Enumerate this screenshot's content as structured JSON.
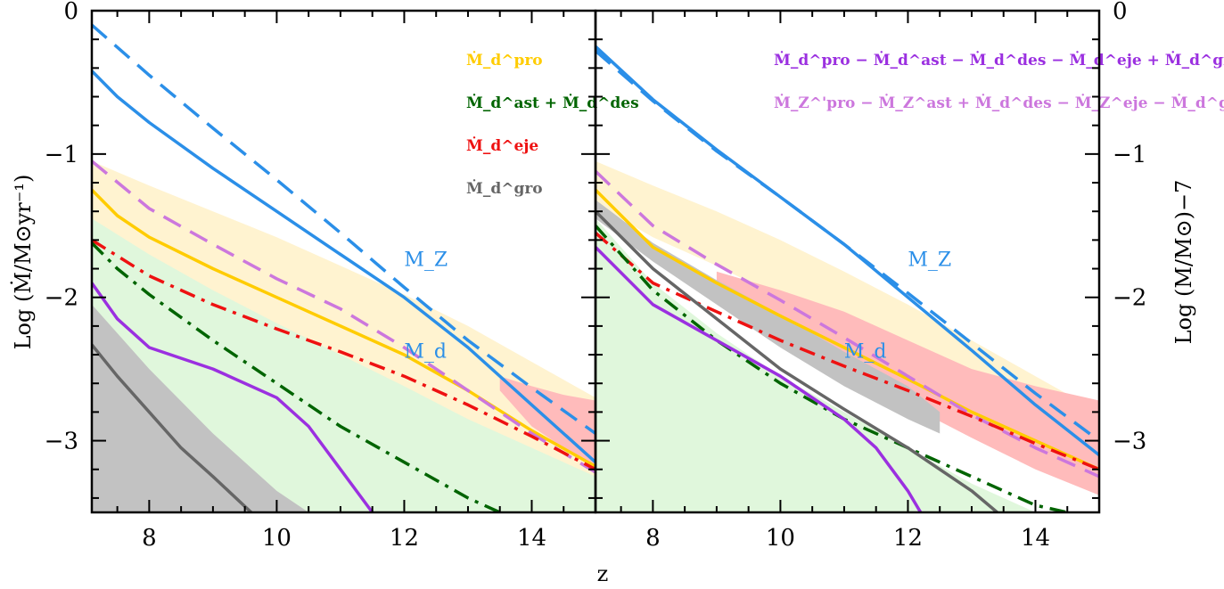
{
  "chart_data": {
    "type": "line",
    "xlabel": "z",
    "ylabel_left": "Log (Ṁ/M⊙yr⁻¹)",
    "ylabel_right": "Log (M/M⊙)−7",
    "xlim": [
      7.1,
      15.0
    ],
    "ylim": [
      -3.5,
      0
    ],
    "x_ticks": [
      "8",
      "10",
      "12",
      "14"
    ],
    "y_ticks": [
      "0",
      "−1",
      "−2",
      "−3"
    ],
    "colors": {
      "blue": "#2b8fe8",
      "gold": "#ffcc00",
      "violet": "#cc77dd",
      "red": "#ee1111",
      "green": "#006400",
      "purple": "#9b30e0",
      "gray": "#666666",
      "band_yellow": "#fff3d0",
      "band_green": "#e0f7dc",
      "band_red": "#ffbbbb",
      "band_gray": "#c2c2c2"
    },
    "left_panel": {
      "legend": [
        {
          "text": "Ṁ_d^pro",
          "color": "#ffcc00"
        },
        {
          "text": "Ṁ_d^ast + Ṁ_d^des",
          "color": "#006400"
        },
        {
          "text": "Ṁ_d^eje",
          "color": "#ee1111"
        },
        {
          "text": "Ṁ_d^gro",
          "color": "#666666"
        }
      ],
      "curve_labels": [
        {
          "text": "M_Z",
          "x": 12.0,
          "y": -1.78,
          "color": "#2b8fe8"
        },
        {
          "text": "M_d",
          "x": 12.0,
          "y": -2.42,
          "color": "#2b8fe8"
        }
      ],
      "bands": [
        {
          "name": "yellow-band",
          "color": "#fff3d0",
          "x": [
            7.1,
            8,
            9,
            10,
            11,
            12,
            13,
            14,
            15
          ],
          "upper": [
            -1.05,
            -1.22,
            -1.4,
            -1.58,
            -1.78,
            -1.98,
            -2.2,
            -2.45,
            -2.7
          ],
          "lower": [
            -1.55,
            -1.78,
            -2.0,
            -2.2,
            -2.42,
            -2.65,
            -2.88,
            -3.1,
            -3.3
          ]
        },
        {
          "name": "green-band",
          "color": "#e0f7dc",
          "x": [
            7.1,
            8,
            9,
            10,
            11,
            12,
            13,
            14,
            15
          ],
          "upper": [
            -1.45,
            -1.7,
            -1.95,
            -2.18,
            -2.4,
            -2.62,
            -2.85,
            -3.05,
            -3.25
          ],
          "lower": [
            -2.05,
            -2.55,
            -3.05,
            -3.5,
            -3.5,
            -3.5,
            -3.5,
            -3.5,
            -3.5
          ]
        },
        {
          "name": "red-band",
          "color": "#ffbbbb",
          "x": [
            13.5,
            14,
            14.5,
            15
          ],
          "upper": [
            -2.55,
            -2.62,
            -2.68,
            -2.72
          ],
          "lower": [
            -2.65,
            -2.9,
            -3.05,
            -3.2
          ]
        },
        {
          "name": "gray-band",
          "color": "#c2c2c2",
          "x": [
            7.1,
            8,
            9,
            10,
            10.5
          ],
          "upper": [
            -2.05,
            -2.5,
            -2.95,
            -3.35,
            -3.5
          ],
          "lower": [
            -3.5,
            -3.5,
            -3.5,
            -3.5,
            -3.5
          ]
        }
      ],
      "series": [
        {
          "name": "M_Z",
          "color": "#2b8fe8",
          "dash": "dashed",
          "x": [
            7.1,
            8,
            9,
            10,
            11,
            12,
            13,
            14,
            15
          ],
          "y": [
            -0.1,
            -0.45,
            -0.82,
            -1.18,
            -1.55,
            -1.93,
            -2.3,
            -2.63,
            -2.95
          ]
        },
        {
          "name": "M_d",
          "color": "#2b8fe8",
          "dash": "solid",
          "x": [
            7.1,
            7.5,
            8,
            9,
            10,
            11,
            12,
            13,
            14,
            15
          ],
          "y": [
            -0.42,
            -0.6,
            -0.78,
            -1.1,
            -1.4,
            -1.7,
            -2.0,
            -2.35,
            -2.75,
            -3.15
          ]
        },
        {
          "name": "Ṁ_d^pro",
          "color": "#ffcc00",
          "dash": "solid",
          "x": [
            7.1,
            7.5,
            8,
            9,
            10,
            11,
            12,
            13,
            14,
            15
          ],
          "y": [
            -1.25,
            -1.43,
            -1.58,
            -1.8,
            -2.0,
            -2.2,
            -2.4,
            -2.65,
            -2.93,
            -3.18
          ]
        },
        {
          "name": "total-net-dust",
          "color": "#cc77dd",
          "dash": "dashed",
          "x": [
            7.1,
            8,
            9,
            10,
            11,
            12,
            13,
            14,
            15
          ],
          "y": [
            -1.05,
            -1.38,
            -1.63,
            -1.87,
            -2.08,
            -2.35,
            -2.65,
            -2.95,
            -3.22
          ]
        },
        {
          "name": "Ṁ_d^eje",
          "color": "#ee1111",
          "dash": "dashdot",
          "x": [
            7.1,
            8,
            9,
            10,
            11,
            12,
            13,
            14,
            15
          ],
          "y": [
            -1.6,
            -1.85,
            -2.05,
            -2.22,
            -2.38,
            -2.55,
            -2.75,
            -2.97,
            -3.2
          ]
        },
        {
          "name": "Ṁ_d^ast + Ṁ_d^des",
          "color": "#006400",
          "dash": "dashdot",
          "x": [
            7.1,
            7.5,
            8,
            9,
            10,
            11,
            12,
            13,
            13.5
          ],
          "y": [
            -1.62,
            -1.8,
            -1.98,
            -2.3,
            -2.6,
            -2.9,
            -3.15,
            -3.4,
            -3.5
          ]
        },
        {
          "name": "purple-net",
          "color": "#9b30e0",
          "dash": "solid",
          "x": [
            7.1,
            7.5,
            8,
            9,
            10,
            10.5,
            11,
            11.5
          ],
          "y": [
            -1.9,
            -2.15,
            -2.35,
            -2.5,
            -2.7,
            -2.9,
            -3.2,
            -3.5
          ]
        },
        {
          "name": "Ṁ_d^gro",
          "color": "#666666",
          "dash": "solid",
          "x": [
            7.1,
            7.5,
            8,
            8.5,
            9,
            9.6
          ],
          "y": [
            -2.33,
            -2.55,
            -2.8,
            -3.05,
            -3.25,
            -3.5
          ]
        }
      ]
    },
    "right_panel": {
      "legend": [
        {
          "text": "Ṁ_d^pro − Ṁ_d^ast − Ṁ_d^des − Ṁ_d^eje + Ṁ_d^gro",
          "color": "#9b30e0"
        },
        {
          "text": "Ṁ_Z^'pro − Ṁ_Z^ast + Ṁ_d^des − Ṁ_Z^eje − Ṁ_d^gro",
          "color": "#cc77dd"
        }
      ],
      "curve_labels": [
        {
          "text": "M_Z",
          "x": 12.0,
          "y": -1.78,
          "color": "#2b8fe8"
        },
        {
          "text": "M_d",
          "x": 11.0,
          "y": -2.42,
          "color": "#2b8fe8"
        }
      ],
      "bands": [
        {
          "name": "yellow-band",
          "color": "#fff3d0",
          "x": [
            7.1,
            8,
            9,
            10,
            11,
            12,
            13,
            14,
            15
          ],
          "upper": [
            -1.05,
            -1.22,
            -1.4,
            -1.6,
            -1.82,
            -2.05,
            -2.3,
            -2.55,
            -2.8
          ],
          "lower": [
            -1.35,
            -1.58,
            -1.78,
            -2.0,
            -2.2,
            -2.45,
            -2.75,
            -3.0,
            -3.25
          ]
        },
        {
          "name": "red-band",
          "color": "#ffbbbb",
          "x": [
            9,
            10,
            11,
            12,
            13,
            14,
            15
          ],
          "upper": [
            -1.82,
            -1.95,
            -2.1,
            -2.3,
            -2.5,
            -2.62,
            -2.72
          ],
          "lower": [
            -2.05,
            -2.25,
            -2.5,
            -2.75,
            -2.98,
            -3.2,
            -3.38
          ]
        },
        {
          "name": "green-band",
          "color": "#e0f7dc",
          "x": [
            7.1,
            7.6,
            8,
            9,
            10,
            11,
            12,
            13,
            14,
            15
          ],
          "upper": [
            -1.45,
            -1.7,
            -1.9,
            -2.25,
            -2.55,
            -2.8,
            -3.05,
            -3.3,
            -3.5,
            -3.5
          ],
          "lower": [
            -3.5,
            -3.5,
            -3.5,
            -3.5,
            -3.5,
            -3.5,
            -3.5,
            -3.5,
            -3.5,
            -3.5
          ]
        },
        {
          "name": "gray-band",
          "color": "#c2c2c2",
          "x": [
            7.1,
            8,
            9,
            10,
            11,
            12,
            12.5
          ],
          "upper": [
            -1.32,
            -1.62,
            -1.88,
            -2.12,
            -2.38,
            -2.62,
            -2.8
          ],
          "lower": [
            -1.45,
            -1.75,
            -2.05,
            -2.35,
            -2.62,
            -2.85,
            -2.95
          ]
        }
      ],
      "series": [
        {
          "name": "M_Z",
          "color": "#2b8fe8",
          "dash": "dashed",
          "x": [
            7.1,
            8,
            9,
            10,
            11,
            12,
            13,
            14,
            15
          ],
          "y": [
            -0.28,
            -0.63,
            -0.98,
            -1.3,
            -1.63,
            -1.97,
            -2.32,
            -2.67,
            -3.0
          ]
        },
        {
          "name": "M_d",
          "color": "#2b8fe8",
          "dash": "solid",
          "x": [
            7.1,
            8,
            9,
            10,
            11,
            12,
            13,
            14,
            15
          ],
          "y": [
            -0.25,
            -0.62,
            -0.97,
            -1.3,
            -1.63,
            -2.0,
            -2.37,
            -2.75,
            -3.1
          ]
        },
        {
          "name": "Ṁ_d^pro",
          "color": "#ffcc00",
          "dash": "solid",
          "x": [
            7.1,
            8,
            9,
            10,
            11,
            12,
            13,
            14,
            15
          ],
          "y": [
            -1.25,
            -1.65,
            -1.9,
            -2.13,
            -2.35,
            -2.57,
            -2.8,
            -3.0,
            -3.2
          ]
        },
        {
          "name": "total-net-dust",
          "color": "#cc77dd",
          "dash": "dashed",
          "x": [
            7.1,
            8,
            9,
            10,
            11,
            12,
            13,
            14,
            15
          ],
          "y": [
            -1.12,
            -1.5,
            -1.77,
            -2.02,
            -2.28,
            -2.55,
            -2.82,
            -3.05,
            -3.25
          ]
        },
        {
          "name": "Ṁ_d^eje",
          "color": "#ee1111",
          "dash": "dashdot",
          "x": [
            7.1,
            8,
            9,
            10,
            11,
            12,
            13,
            14,
            15
          ],
          "y": [
            -1.55,
            -1.9,
            -2.1,
            -2.3,
            -2.48,
            -2.65,
            -2.83,
            -3.02,
            -3.2
          ]
        },
        {
          "name": "Ṁ_d^ast + Ṁ_d^des",
          "color": "#006400",
          "dash": "dashdot",
          "x": [
            7.1,
            8,
            9,
            10,
            11,
            12,
            13,
            14,
            14.5
          ],
          "y": [
            -1.5,
            -1.95,
            -2.3,
            -2.6,
            -2.85,
            -3.05,
            -3.25,
            -3.45,
            -3.5
          ]
        },
        {
          "name": "purple-net",
          "color": "#9b30e0",
          "dash": "solid",
          "x": [
            7.1,
            8,
            9,
            10,
            11,
            11.5,
            12,
            12.2
          ],
          "y": [
            -1.65,
            -2.05,
            -2.3,
            -2.55,
            -2.85,
            -3.05,
            -3.35,
            -3.5
          ]
        },
        {
          "name": "Ṁ_d^gro",
          "color": "#666666",
          "dash": "solid",
          "x": [
            7.1,
            8,
            9,
            10,
            11,
            12,
            13,
            13.4
          ],
          "y": [
            -1.4,
            -1.8,
            -2.15,
            -2.5,
            -2.78,
            -3.05,
            -3.35,
            -3.5
          ]
        }
      ]
    }
  }
}
